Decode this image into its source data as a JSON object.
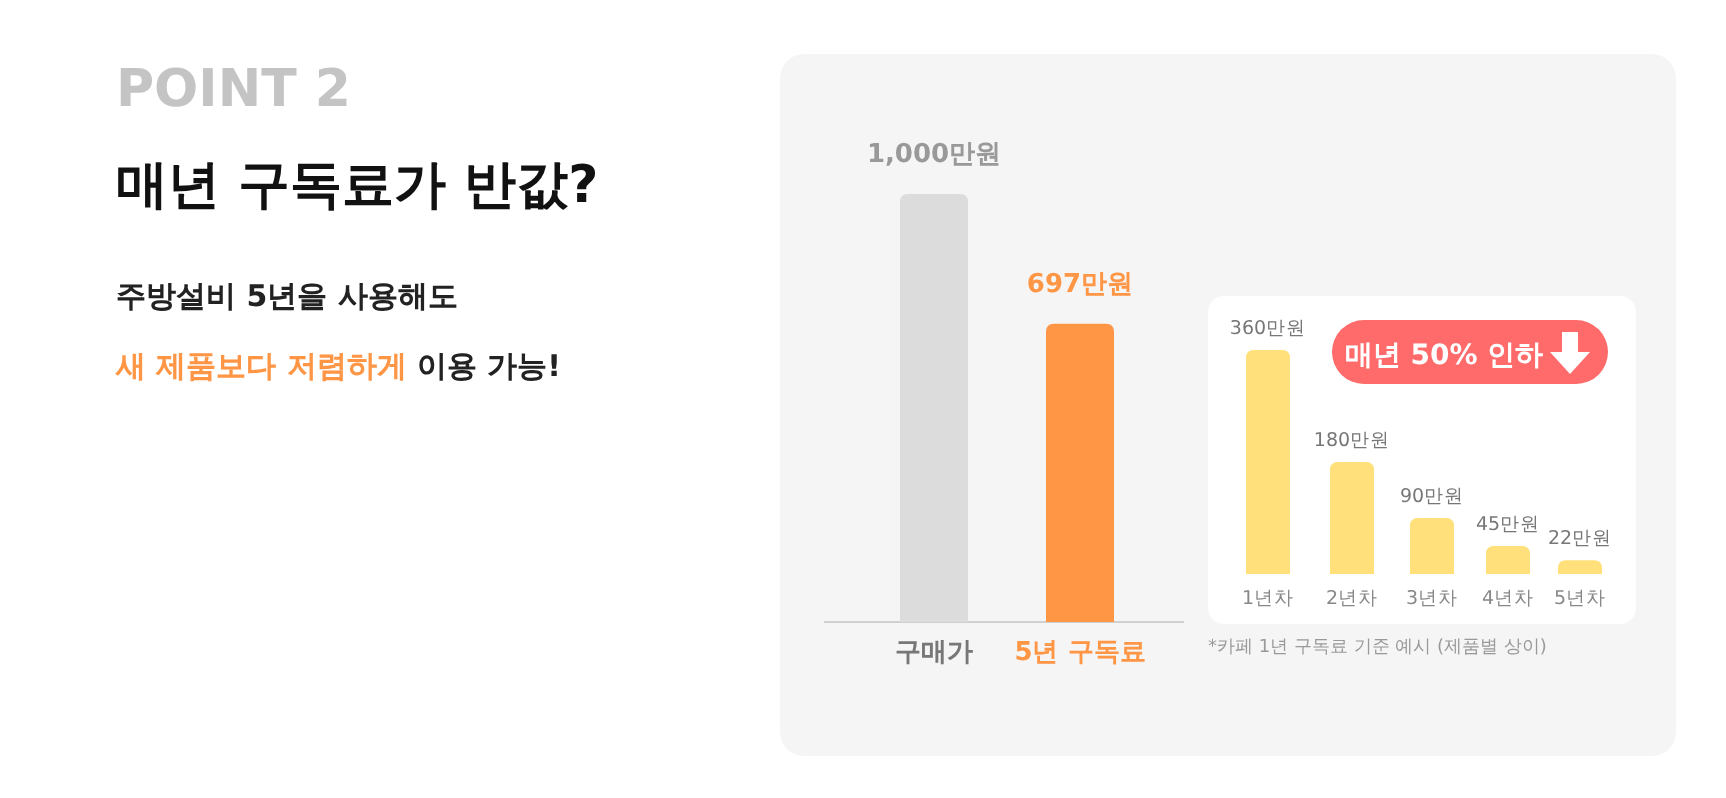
{
  "chart_data": [
    {
      "type": "bar",
      "title": "매년 구독료가 반값?",
      "annotations": [
        "POINT 2",
        "주방설비 5년을 사용해도",
        "새 제품보다 저렴하게",
        "이용 가능!"
      ],
      "categories": [
        "구매가",
        "5년 구독료"
      ],
      "values": [
        1000,
        697
      ],
      "colors": [
        "#dcdcdc",
        "#ff9645"
      ],
      "value_labels": [
        "1,000만원",
        "697만원"
      ]
    },
    {
      "type": "bar",
      "categories": [
        "1년차",
        "2년차",
        "3년차",
        "4년차",
        "5년차"
      ],
      "values": [
        360,
        180,
        90,
        45,
        22
      ],
      "color": "#ffe07a",
      "value_labels": [
        "360만원",
        "180만원",
        "90만원",
        "45만원",
        "22만원"
      ],
      "annotations": [
        "매년 50% 인하",
        "*카페 1년 구독료 기준 예시 (제품별 상이)"
      ]
    }
  ]
}
